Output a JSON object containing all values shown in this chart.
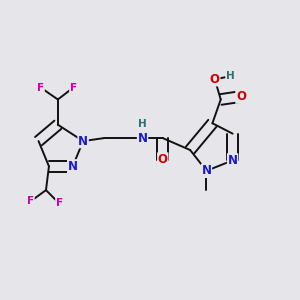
{
  "background_color": "#e6e6ea",
  "bond_color": "#111111",
  "bond_width": 1.4,
  "fig_size": [
    3.0,
    3.0
  ],
  "dpi": 100,
  "atom_colors": {
    "N": "#1a1acc",
    "O": "#cc0000",
    "F": "#cc00aa",
    "H": "#2d7070",
    "C": "#111111"
  },
  "font_size": 8.5,
  "font_size_small": 7.5
}
